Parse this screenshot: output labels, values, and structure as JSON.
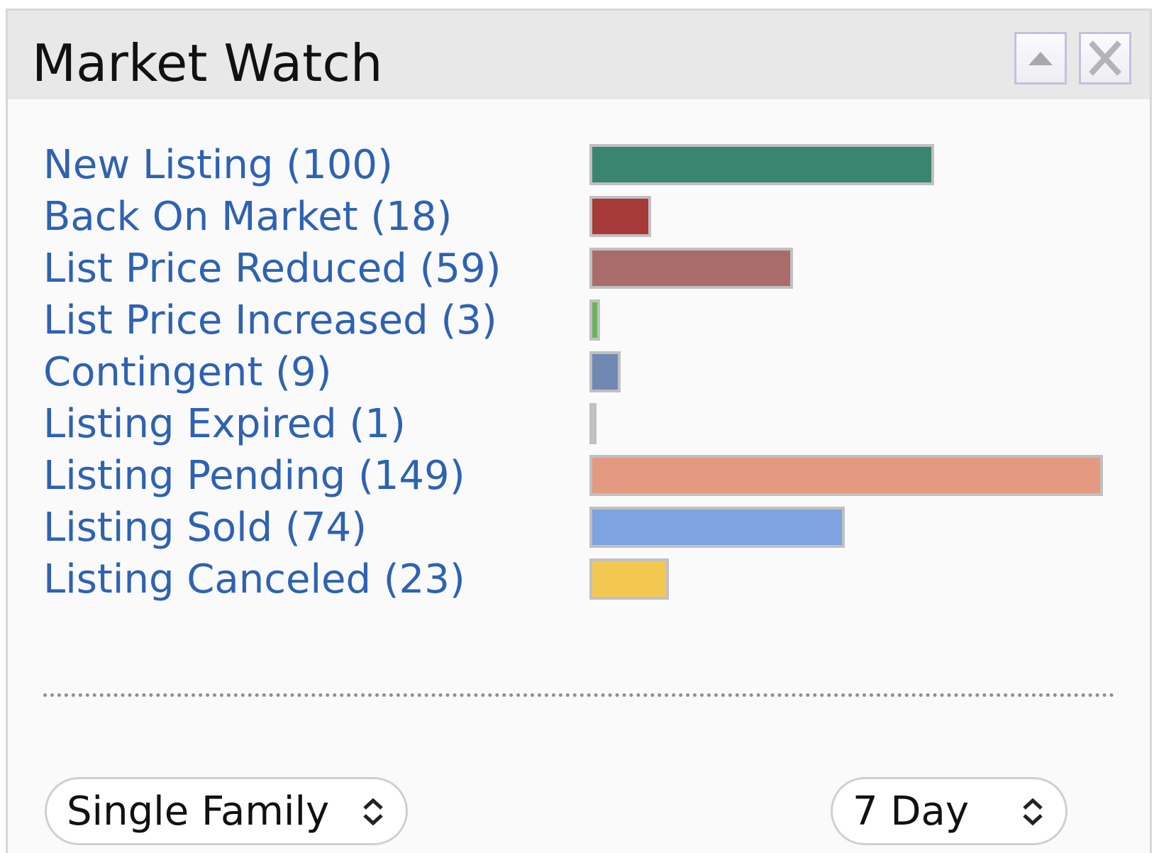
{
  "widget": {
    "title": "Market Watch",
    "controls": {
      "collapse_icon": "triangle-up-icon",
      "close_icon": "close-x-icon"
    }
  },
  "chart_data": {
    "type": "bar",
    "categories": [
      "New Listing (100)",
      "Back On Market (18)",
      "List Price Reduced (59)",
      "List Price Increased (3)",
      "Contingent (9)",
      "Listing Expired (1)",
      "Listing Pending (149)",
      "Listing Sold (74)",
      "Listing Canceled (23)"
    ],
    "values": [
      100,
      18,
      59,
      3,
      9,
      1,
      149,
      74,
      23
    ],
    "colors": [
      "#3a8570",
      "#a53a38",
      "#a96c6a",
      "#6db25c",
      "#7088b2",
      "#c6c6c6",
      "#e39a80",
      "#7fa2e0",
      "#f3c851"
    ],
    "xlim": [
      0,
      149
    ],
    "orientation": "horizontal"
  },
  "filters": {
    "property_type": "Single Family",
    "period": "7 Day",
    "chevron_icon": "chevron-up-down-icon"
  }
}
